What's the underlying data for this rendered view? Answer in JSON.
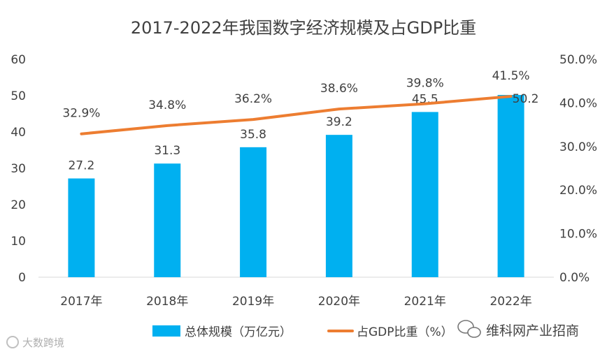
{
  "chart_data": {
    "type": "bar+line",
    "title": "2017-2022年我国数字经济规模及占GDP比重",
    "categories": [
      "2017年",
      "2018年",
      "2019年",
      "2020年",
      "2021年",
      "2022年"
    ],
    "series": [
      {
        "name": "总体规模（万亿元）",
        "type": "bar",
        "axis": "left",
        "values": [
          27.2,
          31.3,
          35.8,
          39.2,
          45.5,
          50.2
        ],
        "labels": [
          "27.2",
          "31.3",
          "35.8",
          "39.2",
          "45.5",
          "50.2"
        ],
        "color": "#00B0F0"
      },
      {
        "name": "占GDP比重（%）",
        "type": "line",
        "axis": "right",
        "values": [
          32.9,
          34.8,
          36.2,
          38.6,
          39.8,
          41.5
        ],
        "labels": [
          "32.9%",
          "34.8%",
          "36.2%",
          "38.6%",
          "39.8%",
          "41.5%"
        ],
        "color": "#ED7D31"
      }
    ],
    "y_left": {
      "min": 0,
      "max": 60,
      "ticks": [
        "0",
        "10",
        "20",
        "30",
        "40",
        "50",
        "60"
      ]
    },
    "y_right": {
      "min": 0,
      "max": 50,
      "ticks": [
        "0.0%",
        "10.0%",
        "20.0%",
        "30.0%",
        "40.0%",
        "50.0%"
      ]
    },
    "grid": false,
    "legend": "bottom"
  },
  "watermarks": {
    "left": "大数跨境",
    "right": "维科网产业招商"
  }
}
